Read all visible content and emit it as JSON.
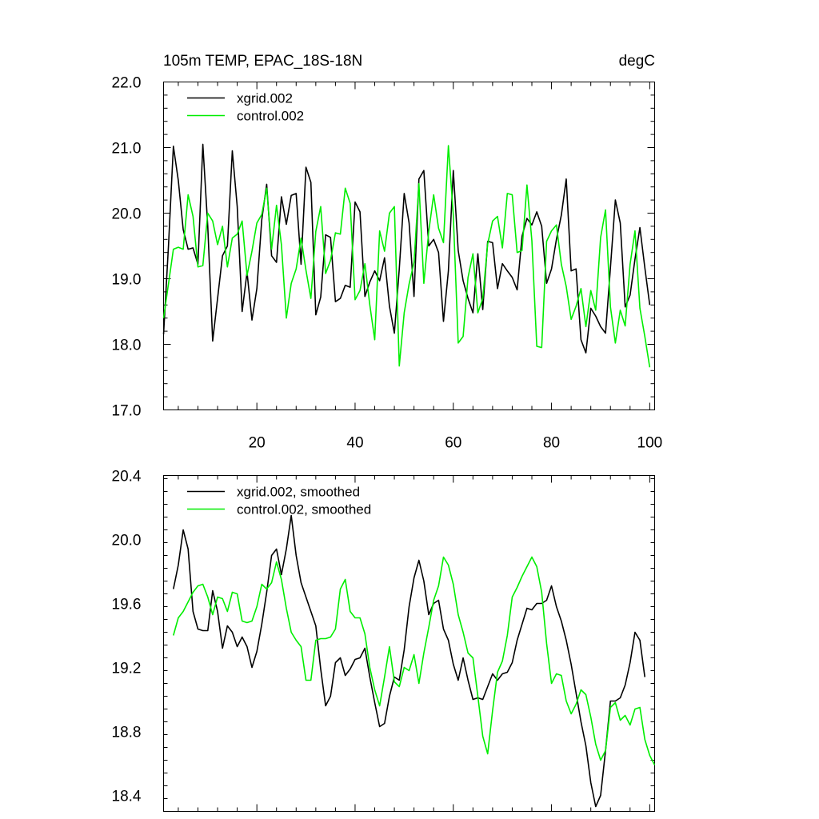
{
  "chart_data": [
    {
      "type": "line",
      "title": "105m TEMP, EPAC_18S-18N",
      "units": "degC",
      "xlim": [
        1,
        101
      ],
      "ylim": [
        17.0,
        22.0
      ],
      "xticks": [
        20,
        40,
        60,
        80,
        100
      ],
      "yticks": [
        "17.0",
        "18.0",
        "19.0",
        "20.0",
        "21.0",
        "22.0"
      ],
      "legend_position": "top-left",
      "series": [
        {
          "name": "xgrid.002",
          "color": "#000000",
          "x_start": 1,
          "values": [
            18.15,
            19.5,
            21.02,
            20.5,
            19.75,
            19.45,
            19.47,
            19.22,
            21.05,
            19.8,
            18.05,
            18.7,
            19.35,
            19.5,
            20.95,
            20.1,
            18.5,
            19.1,
            18.37,
            18.85,
            19.9,
            20.44,
            19.35,
            19.25,
            20.25,
            19.83,
            20.27,
            20.3,
            19.22,
            20.7,
            20.47,
            18.45,
            18.72,
            19.67,
            19.63,
            18.65,
            18.7,
            18.9,
            18.87,
            20.17,
            20.02,
            18.73,
            18.95,
            19.12,
            18.97,
            19.32,
            18.58,
            18.17,
            19.15,
            20.3,
            19.85,
            18.73,
            20.52,
            20.65,
            19.5,
            19.6,
            19.4,
            18.35,
            19.12,
            20.65,
            19.43,
            18.97,
            18.7,
            18.48,
            19.38,
            18.53,
            19.57,
            19.55,
            18.85,
            19.23,
            19.12,
            19.02,
            18.83,
            19.65,
            19.92,
            19.82,
            20.02,
            19.8,
            18.93,
            19.15,
            19.6,
            19.97,
            20.52,
            19.12,
            19.15,
            18.07,
            17.87,
            18.55,
            18.43,
            18.27,
            18.17,
            19.17,
            20.2,
            19.85,
            18.57,
            18.75,
            19.3,
            19.78,
            19.17,
            18.6
          ]
        },
        {
          "name": "control.002",
          "color": "#00ee00",
          "x_start": 1,
          "values": [
            18.4,
            18.92,
            19.45,
            19.48,
            19.45,
            20.28,
            19.95,
            19.18,
            19.2,
            20.0,
            19.88,
            19.52,
            19.8,
            19.18,
            19.62,
            19.68,
            19.88,
            19.05,
            19.42,
            19.85,
            19.98,
            20.38,
            19.45,
            20.12,
            19.52,
            18.4,
            18.93,
            19.15,
            19.62,
            19.13,
            18.7,
            19.72,
            20.1,
            19.08,
            19.28,
            19.7,
            19.68,
            20.38,
            20.15,
            18.68,
            18.82,
            19.23,
            18.6,
            18.07,
            19.73,
            19.42,
            20.0,
            20.1,
            17.67,
            18.48,
            18.92,
            19.25,
            20.45,
            18.93,
            19.72,
            20.28,
            19.77,
            19.55,
            21.03,
            19.97,
            18.02,
            18.12,
            19.02,
            19.38,
            18.48,
            18.7,
            19.53,
            19.88,
            19.95,
            19.47,
            20.3,
            20.28,
            19.4,
            19.43,
            20.43,
            19.58,
            17.97,
            17.95,
            19.57,
            19.73,
            19.82,
            19.22,
            18.88,
            18.38,
            18.58,
            18.85,
            18.27,
            18.82,
            18.52,
            19.63,
            20.05,
            18.57,
            18.02,
            18.52,
            18.28,
            19.22,
            19.73,
            18.55,
            18.12,
            17.65
          ]
        }
      ]
    },
    {
      "type": "line",
      "title": "",
      "xlim": [
        1,
        101
      ],
      "ylim": [
        18.3,
        20.4
      ],
      "yticks": [
        "18.4",
        "18.8",
        "19.2",
        "19.6",
        "20.0",
        "20.4"
      ],
      "legend_position": "top-left",
      "series": [
        {
          "name": "xgrid.002, smoothed",
          "color": "#000000",
          "x_start": 3,
          "values": [
            19.69,
            19.84,
            20.06,
            19.94,
            19.55,
            19.44,
            19.43,
            19.43,
            19.68,
            19.55,
            19.32,
            19.46,
            19.42,
            19.33,
            19.39,
            19.33,
            19.2,
            19.3,
            19.47,
            19.67,
            19.9,
            19.94,
            19.78,
            19.94,
            20.15,
            19.9,
            19.73,
            19.64,
            19.55,
            19.46,
            19.19,
            18.96,
            19.02,
            19.23,
            19.26,
            19.15,
            19.19,
            19.25,
            19.26,
            19.32,
            19.14,
            18.98,
            18.83,
            18.85,
            19.02,
            19.14,
            19.12,
            19.31,
            19.58,
            19.76,
            19.87,
            19.74,
            19.53,
            19.6,
            19.62,
            19.44,
            19.37,
            19.22,
            19.12,
            19.26,
            19.12,
            19.0,
            19.01,
            19.0,
            19.08,
            19.16,
            19.12,
            19.16,
            19.17,
            19.23,
            19.37,
            19.47,
            19.57,
            19.56,
            19.6,
            19.6,
            19.62,
            19.71,
            19.58,
            19.49,
            19.37,
            19.22,
            19.04,
            18.86,
            18.71,
            18.48,
            18.33,
            18.4,
            18.68,
            18.99,
            18.99,
            19.01,
            19.09,
            19.23,
            19.42,
            19.37,
            19.14
          ]
        },
        {
          "name": "control.002, smoothed",
          "color": "#00ee00",
          "x_start": 3,
          "values": [
            19.4,
            19.51,
            19.55,
            19.61,
            19.67,
            19.71,
            19.72,
            19.64,
            19.53,
            19.64,
            19.63,
            19.55,
            19.67,
            19.66,
            19.49,
            19.48,
            19.49,
            19.58,
            19.72,
            19.69,
            19.73,
            19.86,
            19.75,
            19.57,
            19.42,
            19.37,
            19.33,
            19.12,
            19.12,
            19.37,
            19.38,
            19.38,
            19.39,
            19.44,
            19.69,
            19.75,
            19.55,
            19.51,
            19.51,
            19.41,
            19.2,
            19.06,
            18.96,
            19.14,
            19.33,
            19.11,
            19.08,
            19.2,
            19.18,
            19.28,
            19.1,
            19.29,
            19.45,
            19.62,
            19.71,
            19.89,
            19.84,
            19.72,
            19.53,
            19.42,
            19.29,
            19.26,
            19.02,
            18.77,
            18.66,
            18.93,
            19.17,
            19.24,
            19.4,
            19.64,
            19.7,
            19.77,
            19.83,
            19.89,
            19.83,
            19.67,
            19.35,
            19.1,
            19.16,
            19.15,
            18.99,
            18.91,
            18.97,
            19.06,
            19.03,
            18.89,
            18.72,
            18.62,
            18.68,
            18.95,
            18.98,
            18.87,
            18.9,
            18.84,
            18.94,
            18.95,
            18.75,
            18.65,
            18.59
          ]
        }
      ]
    }
  ]
}
